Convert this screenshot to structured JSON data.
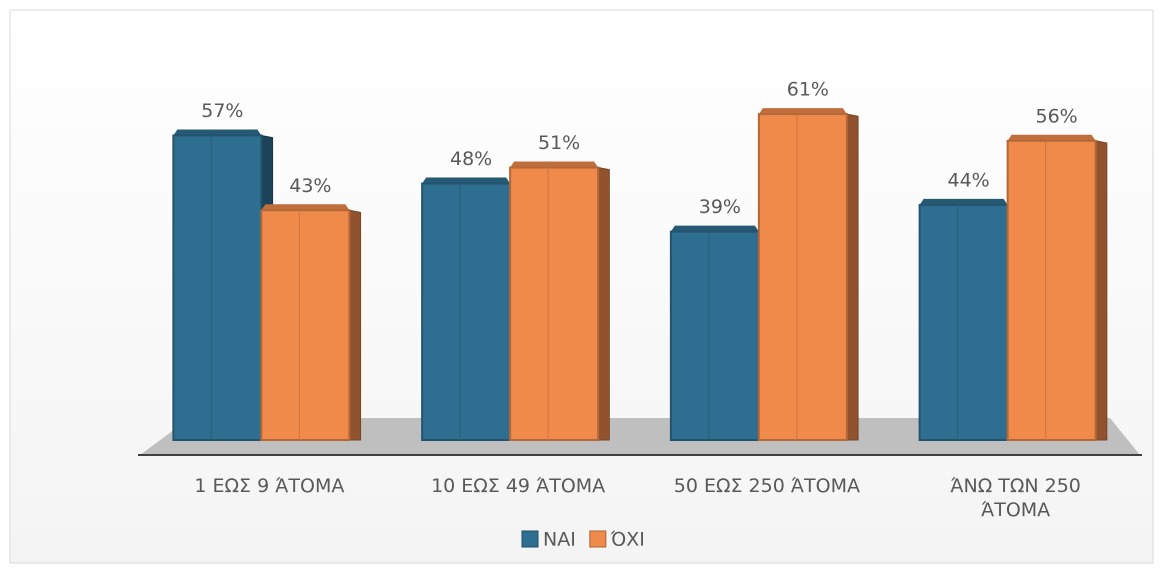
{
  "chart_data": {
    "type": "bar",
    "categories": [
      "1 ΕΩΣ 9 ΆΤΟΜΑ",
      "10 ΕΩΣ 49 ΆΤΟΜΑ",
      "50 ΕΩΣ 250 ΆΤΟΜΑ",
      "ΆΝΩ ΤΩΝ 250 ΆΤΟΜΑ"
    ],
    "series": [
      {
        "name": "ΝΑΙ",
        "color": "#2e6f91",
        "values": [
          57,
          48,
          39,
          44
        ],
        "value_labels": [
          "57%",
          "48%",
          "39%",
          "44%"
        ]
      },
      {
        "name": "ΌΧΙ",
        "color": "#f08a4b",
        "values": [
          43,
          51,
          61,
          56
        ],
        "value_labels": [
          "43%",
          "51%",
          "61%",
          "56%"
        ]
      }
    ],
    "ylim": [
      0,
      70
    ],
    "legend": "bottom"
  }
}
